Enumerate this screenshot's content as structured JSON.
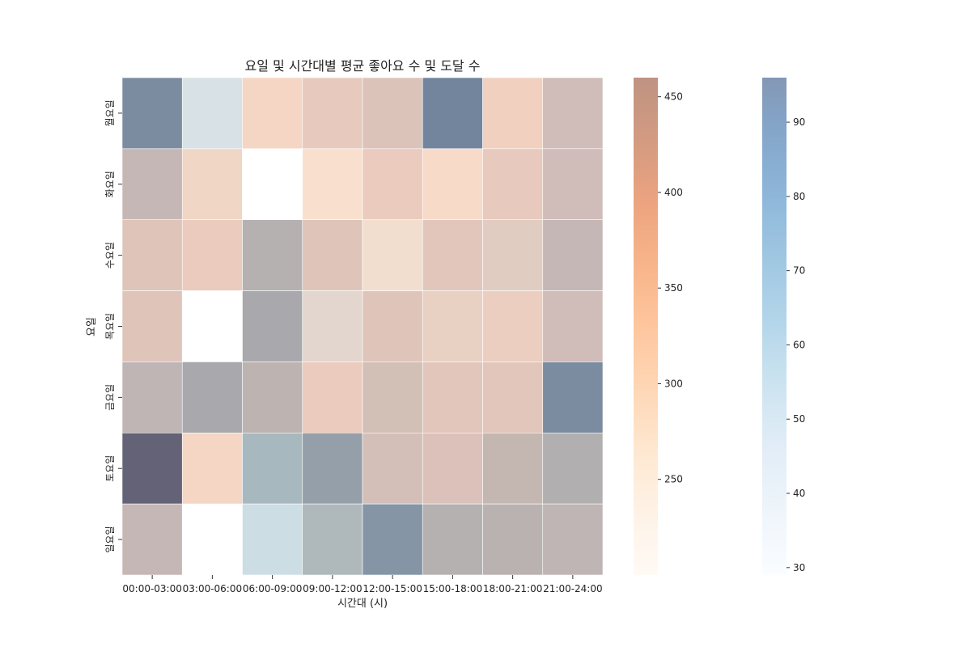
{
  "chart_data": {
    "type": "heatmap",
    "title": "요일 및 시간대별 평균 좋아요 수 및 도달 수",
    "xlabel": "시간대 (시)",
    "ylabel": "요일",
    "x_categories": [
      "00:00-03:00",
      "03:00-06:00",
      "06:00-09:00",
      "09:00-12:00",
      "12:00-15:00",
      "15:00-18:00",
      "18:00-21:00",
      "21:00-24:00"
    ],
    "y_categories": [
      "월요일",
      "화요일",
      "수요일",
      "목요일",
      "금요일",
      "토요일",
      "일요일"
    ],
    "series": [
      {
        "colormap": "Oranges",
        "clim": [
          200,
          460
        ],
        "colorbar_ticks": [
          250,
          300,
          350,
          400,
          450
        ],
        "values": [
          [
            450,
            240,
            370,
            400,
            410,
            460,
            390,
            420
          ],
          [
            420,
            350,
            null,
            330,
            390,
            350,
            400,
            420
          ],
          [
            400,
            390,
            430,
            400,
            320,
            400,
            350,
            420
          ],
          [
            400,
            null,
            420,
            310,
            400,
            350,
            380,
            420
          ],
          [
            440,
            420,
            410,
            390,
            380,
            390,
            390,
            450
          ],
          [
            460,
            370,
            300,
            440,
            410,
            390,
            390,
            440
          ],
          [
            420,
            null,
            230,
            320,
            450,
            430,
            420,
            440
          ]
        ]
      },
      {
        "colormap": "Blues",
        "clim": [
          29,
          96
        ],
        "colorbar_ticks": [
          30,
          40,
          50,
          60,
          70,
          80,
          90
        ],
        "values": [
          [
            75,
            50,
            30,
            35,
            40,
            78,
            30,
            45
          ],
          [
            50,
            35,
            30,
            30,
            35,
            30,
            35,
            45
          ],
          [
            40,
            35,
            55,
            40,
            35,
            38,
            45,
            50
          ],
          [
            40,
            30,
            60,
            45,
            40,
            40,
            35,
            45
          ],
          [
            50,
            60,
            55,
            35,
            50,
            40,
            40,
            75
          ],
          [
            96,
            30,
            68,
            65,
            45,
            45,
            55,
            55
          ],
          [
            50,
            30,
            55,
            65,
            70,
            55,
            55,
            50
          ]
        ]
      }
    ]
  }
}
